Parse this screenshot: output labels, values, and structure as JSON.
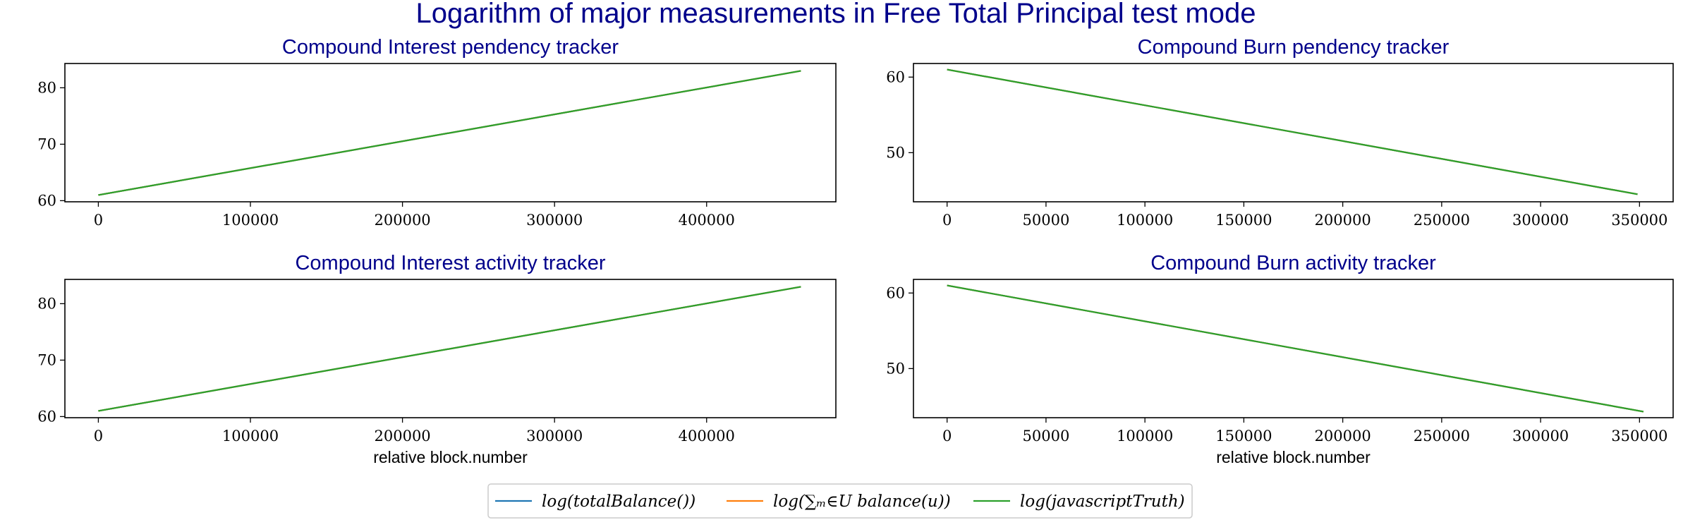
{
  "figure": {
    "suptitle": "Logarithm of major measurements in Free Total Principal test mode"
  },
  "legend": {
    "placement": "bottom-center",
    "entries": [
      {
        "label": "log(totalBalance())",
        "color": "#1f77b4"
      },
      {
        "label": "log(∑ₘ∈U balance(u))",
        "color": "#ff7f0e"
      },
      {
        "label": "log(javascriptTruth)",
        "color": "#2ca02c"
      }
    ]
  },
  "chart_data": [
    {
      "type": "line",
      "title": "Compound Interest pendency tracker",
      "xlabel": "",
      "ylabel": "",
      "xlim": [
        -22000,
        485000
      ],
      "ylim": [
        59.8,
        84.3
      ],
      "xticks": [
        0,
        100000,
        200000,
        300000,
        400000
      ],
      "yticks": [
        60,
        70,
        80
      ],
      "grid": false,
      "series": [
        {
          "name": "log(totalBalance())",
          "color": "#1f77b4",
          "x": [
            0,
            462000
          ],
          "y": [
            61,
            83
          ]
        },
        {
          "name": "log(∑ₘ∈U balance(u))",
          "color": "#ff7f0e",
          "x": [
            0,
            462000
          ],
          "y": [
            61,
            83
          ]
        },
        {
          "name": "log(javascriptTruth)",
          "color": "#2ca02c",
          "x": [
            0,
            462000
          ],
          "y": [
            61,
            83
          ]
        }
      ]
    },
    {
      "type": "line",
      "title": "Compound Burn pendency tracker",
      "xlabel": "",
      "ylabel": "",
      "xlim": [
        -17000,
        367000
      ],
      "ylim": [
        43.5,
        61.8
      ],
      "xticks": [
        0,
        50000,
        100000,
        150000,
        200000,
        250000,
        300000,
        350000
      ],
      "yticks": [
        50,
        60
      ],
      "grid": false,
      "series": [
        {
          "name": "log(totalBalance())",
          "color": "#1f77b4",
          "x": [
            0,
            349000
          ],
          "y": [
            61,
            44.5
          ]
        },
        {
          "name": "log(∑ₘ∈U balance(u))",
          "color": "#ff7f0e",
          "x": [
            0,
            349000
          ],
          "y": [
            61,
            44.5
          ]
        },
        {
          "name": "log(javascriptTruth)",
          "color": "#2ca02c",
          "x": [
            0,
            349000
          ],
          "y": [
            61,
            44.5
          ]
        }
      ]
    },
    {
      "type": "line",
      "title": "Compound Interest activity tracker",
      "xlabel": "relative block.number",
      "ylabel": "",
      "xlim": [
        -22000,
        485000
      ],
      "ylim": [
        59.8,
        84.3
      ],
      "xticks": [
        0,
        100000,
        200000,
        300000,
        400000
      ],
      "yticks": [
        60,
        70,
        80
      ],
      "grid": false,
      "series": [
        {
          "name": "log(totalBalance())",
          "color": "#1f77b4",
          "x": [
            0,
            462000
          ],
          "y": [
            61,
            83
          ]
        },
        {
          "name": "log(∑ₘ∈U balance(u))",
          "color": "#ff7f0e",
          "x": [
            0,
            462000
          ],
          "y": [
            61,
            83
          ]
        },
        {
          "name": "log(javascriptTruth)",
          "color": "#2ca02c",
          "x": [
            0,
            462000
          ],
          "y": [
            61,
            83
          ]
        }
      ]
    },
    {
      "type": "line",
      "title": "Compound Burn activity tracker",
      "xlabel": "relative block.number",
      "ylabel": "",
      "xlim": [
        -17000,
        367000
      ],
      "ylim": [
        43.5,
        61.8
      ],
      "xticks": [
        0,
        50000,
        100000,
        150000,
        200000,
        250000,
        300000,
        350000
      ],
      "yticks": [
        50,
        60
      ],
      "grid": false,
      "series": [
        {
          "name": "log(totalBalance())",
          "color": "#1f77b4",
          "x": [
            0,
            352000
          ],
          "y": [
            61,
            44.3
          ]
        },
        {
          "name": "log(∑ₘ∈U balance(u))",
          "color": "#ff7f0e",
          "x": [
            0,
            352000
          ],
          "y": [
            61,
            44.3
          ]
        },
        {
          "name": "log(javascriptTruth)",
          "color": "#2ca02c",
          "x": [
            0,
            352000
          ],
          "y": [
            61,
            44.3
          ]
        }
      ]
    }
  ]
}
